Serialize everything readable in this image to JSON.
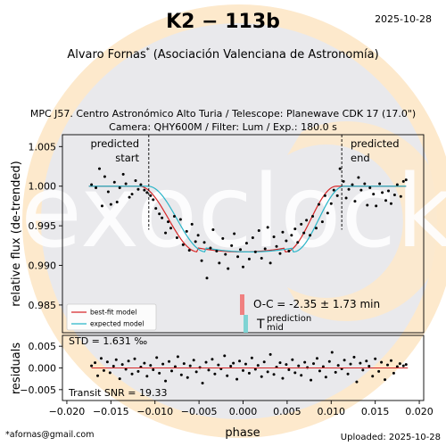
{
  "header": {
    "title": "K2 − 113b",
    "date": "2025-10-28",
    "observer_name": "Alvaro Fornas",
    "observer_mark": "*",
    "observer_org": "(Asociación Valenciana de Astronomía)",
    "obs_line1": "MPC J57. Centro Astronómico Alto Turia / Telescope: Planewave CDK 17 (17.0\")",
    "obs_line2": "Camera: QHY600M / Filter: Lum / Exp.: 180.0 s"
  },
  "footer": {
    "email": "*afornas@gmail.com",
    "uploaded": "Uploaded: 2025-10-28"
  },
  "watermark": {
    "text": "exoclock",
    "colors": {
      "ring": "#fde9cc",
      "disk": "#e9e9ec",
      "glyph": "#ffffff"
    }
  },
  "colors": {
    "points": "#000000",
    "best_fit": "#d62728",
    "expected": "#2ab5c8",
    "oc_bar": "#f08080",
    "tmid_bar": "#7fd3d3",
    "residual_line": "#d62728"
  },
  "chart_data": [
    {
      "type": "scatter",
      "title": "",
      "xlabel": "phase",
      "ylabel": "relative flux (de-trended)",
      "xlim": [
        -0.0205,
        0.0205
      ],
      "ylim": [
        0.9815,
        1.0065
      ],
      "xticks": [
        -0.02,
        -0.015,
        -0.01,
        -0.005,
        0.0,
        0.005,
        0.01,
        0.015,
        0.02
      ],
      "xtick_labels": [
        "−0.020",
        "−0.015",
        "−0.010",
        "−0.005",
        "0.000",
        "0.005",
        "0.010",
        "0.015",
        "0.020"
      ],
      "yticks": [
        0.985,
        0.99,
        0.995,
        1.0,
        1.005
      ],
      "ytick_labels": [
        "0.985",
        "0.990",
        "0.995",
        "1.000",
        "1.005"
      ],
      "predicted_start": {
        "phase": -0.0107,
        "label": [
          "predicted",
          "start"
        ]
      },
      "predicted_end": {
        "phase": 0.0112,
        "label": [
          "predicted",
          "end"
        ]
      },
      "legend": {
        "position": "bottom-left",
        "entries": [
          "best-fit model",
          "expected model"
        ]
      },
      "oc_annotation": "O-C = -2.35 ± 1.73 min",
      "tmid_annotation": {
        "symbol": "T",
        "superscript": "prediction",
        "subscript": "mid"
      },
      "model": {
        "baseline": 1.0,
        "min_flux": 0.9917,
        "best_fit": {
          "t1": -0.0118,
          "t2": -0.0051,
          "t3": 0.0048,
          "t4": 0.0106
        },
        "expected": {
          "t1": -0.0108,
          "t2": -0.0042,
          "t3": 0.0057,
          "t4": 0.0115
        }
      },
      "series": [
        {
          "name": "data",
          "x": [
            -0.0172,
            -0.0167,
            -0.0163,
            -0.016,
            -0.0157,
            -0.0153,
            -0.015,
            -0.0146,
            -0.0143,
            -0.014,
            -0.0136,
            -0.0133,
            -0.0129,
            -0.0126,
            -0.0122,
            -0.0119,
            -0.0116,
            -0.0112,
            -0.0109,
            -0.0105,
            -0.0102,
            -0.0099,
            -0.0095,
            -0.0092,
            -0.0088,
            -0.0085,
            -0.0082,
            -0.0078,
            -0.0075,
            -0.0071,
            -0.0068,
            -0.0064,
            -0.0061,
            -0.0058,
            -0.0054,
            -0.0051,
            -0.0047,
            -0.0044,
            -0.0041,
            -0.0037,
            -0.0034,
            -0.003,
            -0.0027,
            -0.0023,
            -0.002,
            -0.0017,
            -0.0013,
            -0.001,
            -0.0006,
            -0.0003,
            0.0,
            0.0004,
            0.0007,
            0.0011,
            0.0014,
            0.0018,
            0.0021,
            0.0025,
            0.0028,
            0.0031,
            0.0035,
            0.0038,
            0.0042,
            0.0045,
            0.0049,
            0.0052,
            0.0055,
            0.0059,
            0.0062,
            0.0066,
            0.0069,
            0.0072,
            0.0076,
            0.0079,
            0.0083,
            0.0086,
            0.009,
            0.0093,
            0.0096,
            0.01,
            0.0103,
            0.0107,
            0.011,
            0.0114,
            0.0117,
            0.012,
            0.0124,
            0.0127,
            0.0131,
            0.0134,
            0.0138,
            0.0141,
            0.0144,
            0.0148,
            0.0151,
            0.0155,
            0.0158,
            0.0162,
            0.0165,
            0.0168,
            0.0172,
            0.0175,
            0.0179,
            0.0182,
            0.0185
          ],
          "y": [
            1.0002,
            0.9998,
            1.0022,
            0.9975,
            1.0012,
            0.9993,
            0.9977,
            1.0005,
            0.998,
            0.9998,
            1.0015,
            1.0003,
            0.9986,
            0.999,
            1.0007,
            0.9996,
            1.0002,
            0.9995,
            0.9992,
            0.9988,
            0.9983,
            0.9972,
            0.9965,
            0.996,
            0.9941,
            0.9955,
            0.9947,
            0.9962,
            0.9935,
            0.9958,
            0.9926,
            0.9943,
            0.9919,
            0.9952,
            0.993,
            0.9938,
            0.9906,
            0.9929,
            0.9884,
            0.9922,
            0.9945,
            0.9918,
            0.9903,
            0.9934,
            0.9914,
            0.9896,
            0.9925,
            0.994,
            0.9911,
            0.992,
            0.9898,
            0.9928,
            0.9908,
            0.9935,
            0.9917,
            0.9944,
            0.9909,
            0.9921,
            0.9948,
            0.9903,
            0.9936,
            0.9924,
            0.9915,
            0.9942,
            0.9931,
            0.9918,
            0.9938,
            0.9946,
            0.9929,
            0.9952,
            0.9941,
            0.9957,
            0.9938,
            0.9962,
            0.9947,
            0.9977,
            0.9955,
            0.9988,
            0.9966,
            0.9978,
            0.9995,
            0.9988,
            1.0022,
            1.0006,
            0.9985,
            0.9996,
            1.0002,
            0.9981,
            1.0011,
            0.9995,
            1.0003,
            0.9976,
            0.9998,
            0.999,
            0.9975,
            1.0003,
            0.9992,
            0.9982,
            0.9994,
            0.9978,
            0.9989,
            1.0002,
            0.9987,
            1.0006,
            1.0008
          ]
        }
      ]
    },
    {
      "type": "scatter",
      "title": "",
      "xlabel": "phase",
      "ylabel": "residuals",
      "xlim": [
        -0.0205,
        0.0205
      ],
      "ylim": [
        -0.0075,
        0.0075
      ],
      "yticks": [
        -0.005,
        0.0,
        0.005
      ],
      "ytick_labels": [
        "−0.005",
        "0.000",
        "0.005"
      ],
      "std_annotation": "STD = 1.631 ‰",
      "snr_annotation": "Transit SNR = 19.33",
      "series": [
        {
          "name": "residuals",
          "x": [
            -0.0172,
            -0.0168,
            -0.0165,
            -0.0161,
            -0.0158,
            -0.0154,
            -0.0151,
            -0.0147,
            -0.0144,
            -0.014,
            -0.0137,
            -0.0133,
            -0.013,
            -0.0126,
            -0.0123,
            -0.0119,
            -0.0116,
            -0.0112,
            -0.0109,
            -0.0105,
            -0.0102,
            -0.0098,
            -0.0095,
            -0.0091,
            -0.0088,
            -0.0084,
            -0.0081,
            -0.0077,
            -0.0074,
            -0.007,
            -0.0067,
            -0.0063,
            -0.006,
            -0.0056,
            -0.0053,
            -0.0049,
            -0.0046,
            -0.0042,
            -0.0039,
            -0.0035,
            -0.0032,
            -0.0028,
            -0.0025,
            -0.0021,
            -0.0018,
            -0.0014,
            -0.0011,
            -0.0007,
            -0.0004,
            0.0,
            0.0003,
            0.0007,
            0.001,
            0.0014,
            0.0017,
            0.0021,
            0.0024,
            0.0028,
            0.0031,
            0.0035,
            0.0038,
            0.0042,
            0.0045,
            0.0049,
            0.0052,
            0.0056,
            0.0059,
            0.0063,
            0.0066,
            0.007,
            0.0073,
            0.0077,
            0.008,
            0.0084,
            0.0087,
            0.0091,
            0.0094,
            0.0098,
            0.0101,
            0.0105,
            0.0108,
            0.0112,
            0.0115,
            0.0119,
            0.0122,
            0.0126,
            0.0129,
            0.0133,
            0.0136,
            0.014,
            0.0143,
            0.0147,
            0.015,
            0.0154,
            0.0157,
            0.0161,
            0.0164,
            0.0168,
            0.0171,
            0.0175,
            0.0178,
            0.0182,
            0.0185
          ],
          "y": [
            0.0005,
            0.0012,
            -0.0018,
            0.0022,
            -0.0006,
            0.0014,
            -0.0011,
            0.0004,
            0.0019,
            -0.0025,
            0.0008,
            -0.0003,
            0.0016,
            -0.0014,
            0.0021,
            -0.0008,
            0.0002,
            0.0011,
            -0.0019,
            0.0006,
            -0.0004,
            0.0024,
            -0.0012,
            0.0009,
            -0.003,
            0.0015,
            -0.0007,
            0.0003,
            0.0026,
            -0.0016,
            0.001,
            -0.0022,
            0.0005,
            0.0018,
            -0.0009,
            0.0001,
            -0.0035,
            0.0013,
            -0.0005,
            0.002,
            -0.0014,
            0.0007,
            -0.0002,
            0.0028,
            -0.0018,
            0.0004,
            0.0011,
            -0.0026,
            0.0016,
            -0.0006,
            0.0009,
            -0.0012,
            0.0023,
            -0.0003,
            0.0006,
            -0.002,
            0.0014,
            -0.0009,
            0.0031,
            -0.0015,
            0.0002,
            0.0012,
            -0.0024,
            0.0008,
            -0.0004,
            0.0019,
            -0.0011,
            0.0005,
            -0.0017,
            0.0013,
            0.0001,
            -0.0028,
            0.001,
            0.0022,
            -0.0007,
            0.0003,
            -0.0021,
            0.0015,
            0.0036,
            -0.001,
            0.0006,
            -0.0002,
            0.0018,
            -0.0014,
            0.0009,
            0.0025,
            -0.0032,
            0.0011,
            -0.0005,
            0.0016,
            0.0004,
            -0.0019,
            0.0021,
            -0.0008,
            0.0013,
            -0.0027,
            0.0007,
            0.0017,
            -0.0012,
            0.0003,
            0.001,
            0.0005,
            0.0008
          ]
        }
      ]
    }
  ]
}
